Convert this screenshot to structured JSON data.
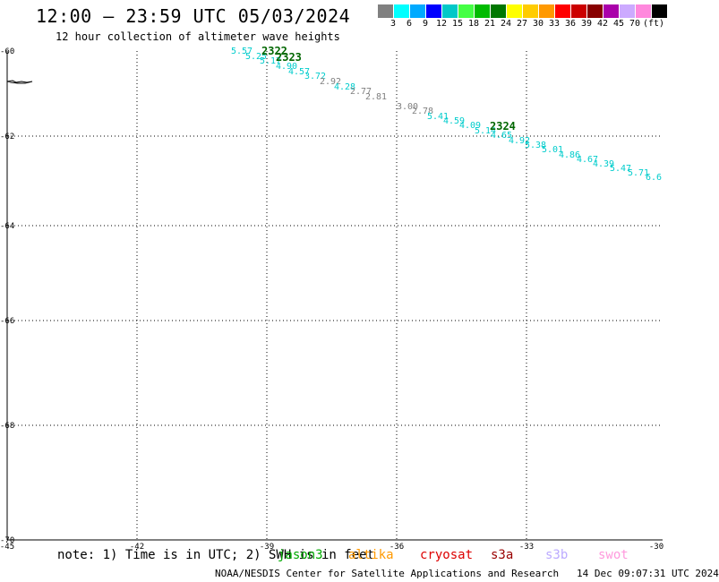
{
  "header": {
    "title": "12:00 – 23:59 UTC 05/03/2024",
    "subtitle": "12 hour collection of altimeter wave heights"
  },
  "legend": {
    "colors": [
      "#808080",
      "#00ffff",
      "#00aaff",
      "#0000ff",
      "#00c8c8",
      "#44ff44",
      "#00bb00",
      "#007700",
      "#ffff00",
      "#ffcc00",
      "#ff9900",
      "#ff0000",
      "#cc0000",
      "#880000",
      "#aa00aa",
      "#ccaaff",
      "#ff88dd",
      "#000000"
    ],
    "labels": [
      "3",
      "6",
      "9",
      "12",
      "15",
      "18",
      "21",
      "24",
      "27",
      "30",
      "33",
      "36",
      "39",
      "42",
      "45",
      "70"
    ],
    "unit": "(ft)"
  },
  "map": {
    "y_labels": [
      "-60",
      "-62",
      "-64",
      "-66",
      "-68",
      "-70"
    ],
    "x_labels": [
      "-45",
      "-42",
      "-39",
      "-36",
      "-33",
      "-30"
    ]
  },
  "observations": [
    {
      "text": "5.57",
      "color": "#00cccc"
    },
    {
      "text": "5.25",
      "color": "#00cccc"
    },
    {
      "text": "5.17",
      "color": "#00cccc"
    },
    {
      "text": "4.90",
      "color": "#00cccc"
    },
    {
      "text": "4.57",
      "color": "#00cccc"
    },
    {
      "text": "3.72",
      "color": "#00cccc"
    },
    {
      "text": "2.92",
      "color": "#808080"
    },
    {
      "text": "4.28",
      "color": "#00cccc"
    },
    {
      "text": "2.77",
      "color": "#808080"
    },
    {
      "text": "2.81",
      "color": "#808080"
    },
    {
      "text": "3.00",
      "color": "#808080"
    },
    {
      "text": "2.78",
      "color": "#808080"
    },
    {
      "text": "5.41",
      "color": "#00cccc"
    },
    {
      "text": "4.59",
      "color": "#00cccc"
    },
    {
      "text": "4.09",
      "color": "#00cccc"
    },
    {
      "text": "5.14",
      "color": "#00cccc"
    },
    {
      "text": "4.65",
      "color": "#00cccc"
    },
    {
      "text": "4.92",
      "color": "#00cccc"
    },
    {
      "text": "5.38",
      "color": "#00cccc"
    },
    {
      "text": "5.01",
      "color": "#00cccc"
    },
    {
      "text": "4.86",
      "color": "#00cccc"
    },
    {
      "text": "4.67",
      "color": "#00cccc"
    },
    {
      "text": "4.39",
      "color": "#00cccc"
    },
    {
      "text": "5.47",
      "color": "#00cccc"
    },
    {
      "text": "5.71",
      "color": "#00cccc"
    },
    {
      "text": "6.6",
      "color": "#00cccc"
    }
  ],
  "time_labels": [
    {
      "text": "2322",
      "color": "#006600"
    },
    {
      "text": "2323",
      "color": "#006600"
    },
    {
      "text": "2324",
      "color": "#006600"
    }
  ],
  "note": {
    "text": "note: 1) Time is in UTC; 2) SWH is in feet",
    "satellites": [
      {
        "name": "jason3",
        "color": "#00aa00"
      },
      {
        "name": "altika",
        "color": "#ff9900"
      },
      {
        "name": "cryosat",
        "color": "#dd0000"
      },
      {
        "name": "s3a",
        "color": "#990000"
      },
      {
        "name": "s3b",
        "color": "#bbaaff"
      },
      {
        "name": "swot",
        "color": "#ff99dd"
      }
    ]
  },
  "footer": {
    "credit": "NOAA/NESDIS Center for Satellite Applications and Research",
    "timestamp": "14 Dec 09:07:31 UTC 2024"
  }
}
